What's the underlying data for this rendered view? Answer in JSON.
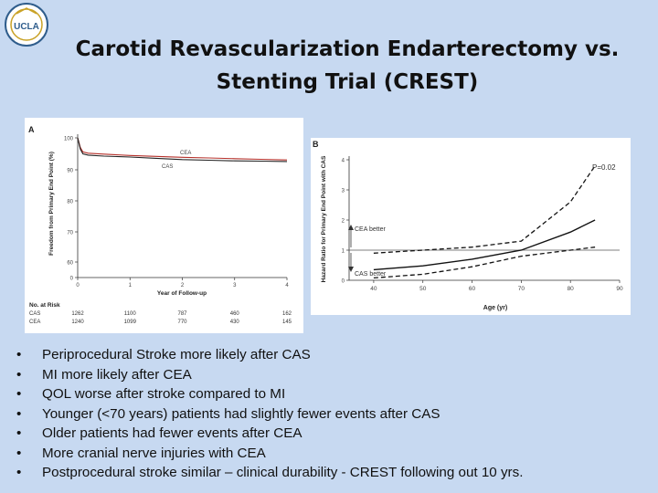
{
  "logo": {
    "text": "UCLA"
  },
  "slide": {
    "title_line1": "Carotid Revascularization Endarterectomy vs.",
    "title_line2": "Stenting Trial (CREST)"
  },
  "bullets": [
    "Periprocedural Stroke more likely after CAS",
    "MI more likely after CEA",
    "QOL worse after stroke compared to MI",
    "Younger (<70 years) patients had slightly fewer events after CAS",
    "Older patients had fewer events after CEA",
    "More cranial nerve injuries with CEA",
    "Postprocedural stroke similar – clinical durability -  CREST following out 10 yrs."
  ],
  "colors": {
    "cea": "#b5302a",
    "cas": "#222222",
    "background": "#c7d9f1"
  },
  "chart_data": [
    {
      "type": "line",
      "panel_label": "A",
      "xlabel": "Year of Follow-up",
      "ylabel": "Freedom from Primary End Point (%)",
      "xlim": [
        0,
        4
      ],
      "ylim": [
        0,
        100
      ],
      "x_ticks": [
        "0",
        "1",
        "2",
        "3",
        "4"
      ],
      "y_ticks": [
        "0",
        "60",
        "70",
        "80",
        "90",
        "100"
      ],
      "series": [
        {
          "name": "CEA",
          "x": [
            0,
            0.05,
            0.1,
            0.2,
            0.5,
            1,
            1.5,
            2,
            2.5,
            3,
            3.5,
            4
          ],
          "values": [
            100,
            97,
            95.6,
            95.2,
            94.9,
            94.5,
            94.2,
            93.9,
            93.7,
            93.5,
            93.3,
            93.1
          ]
        },
        {
          "name": "CAS",
          "x": [
            0,
            0.05,
            0.1,
            0.2,
            0.5,
            1,
            1.5,
            2,
            2.5,
            3,
            3.5,
            4
          ],
          "values": [
            100,
            96.5,
            95,
            94.6,
            94.3,
            94,
            93.6,
            93.2,
            93,
            92.8,
            92.7,
            92.6
          ]
        }
      ],
      "risk_table": {
        "header": "No. at Risk",
        "rows": [
          {
            "label": "CAS",
            "values": [
              "1262",
              "1100",
              "787",
              "460",
              "162"
            ]
          },
          {
            "label": "CEA",
            "values": [
              "1240",
              "1099",
              "770",
              "430",
              "145"
            ]
          }
        ]
      }
    },
    {
      "type": "line",
      "panel_label": "B",
      "xlabel": "Age (yr)",
      "ylabel": "Hazard Ratio for Primary End Point with CAS",
      "xlim": [
        35,
        90
      ],
      "ylim": [
        0,
        4
      ],
      "x_ticks": [
        "40",
        "50",
        "60",
        "70",
        "80",
        "90"
      ],
      "y_ticks": [
        "0",
        "1",
        "2",
        "3",
        "4"
      ],
      "reference_line": 1,
      "annotations": [
        "P=0.02",
        "CEA better",
        "CAS better"
      ],
      "series": [
        {
          "x": [
            40,
            50,
            60,
            70,
            80,
            85
          ],
          "values": [
            0.35,
            0.48,
            0.7,
            1.0,
            1.6,
            2.0
          ]
        },
        {
          "x": [
            40,
            50,
            60,
            70,
            80,
            85
          ],
          "values": [
            0.08,
            0.2,
            0.45,
            0.8,
            1.0,
            1.1
          ]
        },
        {
          "x": [
            40,
            50,
            60,
            70,
            80,
            85
          ],
          "values": [
            0.9,
            1.0,
            1.1,
            1.3,
            2.6,
            3.8
          ]
        }
      ]
    }
  ]
}
